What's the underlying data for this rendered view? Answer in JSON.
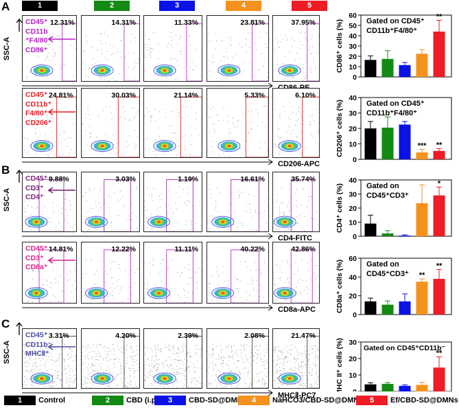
{
  "groups": [
    {
      "num": "1",
      "label": "Control",
      "color": "#000000"
    },
    {
      "num": "2",
      "label": "CBD (i.p.)",
      "color": "#138a13"
    },
    {
      "num": "3",
      "label": "CBD-SD@DMNs",
      "color": "#0a12e6"
    },
    {
      "num": "4",
      "label": "NaHCO3/CBD-SD@DMNs",
      "color": "#f5921e"
    },
    {
      "num": "5",
      "label": "Ef/CBD-SD@DMNs",
      "color": "#ee1c24"
    }
  ],
  "panels": {
    "A": "A",
    "B": "B",
    "C": "C"
  },
  "axis": {
    "ssc": "SSC-A"
  },
  "flow_rows": [
    {
      "id": "cd86",
      "marker_lines": [
        "CD45⁺",
        "CD11b",
        "⁺F4/80⁺",
        "CD86⁺"
      ],
      "marker_color": "#b521c8",
      "x_label": "CD86-PE",
      "gate_color": "#c040d0",
      "percents": [
        "12.31%",
        "14.31%",
        "11.33%",
        "23.81%",
        "37.95%"
      ]
    },
    {
      "id": "cd206",
      "marker_lines": [
        "CD45⁺",
        "CD11b⁺",
        "F4/80⁺",
        "CD206⁺"
      ],
      "marker_color": "#ee1c24",
      "x_label": "CD206-APC",
      "gate_color": "#e03030",
      "percents": [
        "24.81%",
        "30.03%",
        "21.14%",
        "5.33%",
        "6.10%"
      ]
    },
    {
      "id": "cd4",
      "marker_lines": [
        "CD45⁺",
        "CD3⁺",
        "CD4⁺"
      ],
      "marker_color": "#7a1f7a",
      "x_label": "CD4-FITC",
      "gate_color": "#a040a0",
      "percents": [
        "9.88%",
        "3.03%",
        "1.19%",
        "16.61%",
        "35.74%"
      ]
    },
    {
      "id": "cd8",
      "marker_lines": [
        "CD45⁺",
        "CD3⁺",
        "CD8a⁺"
      ],
      "marker_color": "#e0208a",
      "x_label": "CD8a-APC",
      "gate_color": "#c040c0",
      "percents": [
        "14.81%",
        "12.22%",
        "11.11%",
        "40.22%",
        "42.86%"
      ]
    },
    {
      "id": "mhc",
      "marker_lines": [
        "CD45⁺",
        "CD11b⁻",
        "MHCⅡ⁺"
      ],
      "marker_color": "#4a4aa0",
      "x_label": "MHCⅡ-PC7",
      "gate_color": "#555555",
      "percents": [
        "3.31%",
        "4.20%",
        "2.39%",
        "2.08%",
        "21.47%"
      ]
    }
  ],
  "chart_data": [
    {
      "type": "bar",
      "title": "Gated on CD45⁺ CD11b⁺F4/80⁺",
      "ylabel": "CD86⁺ cells (%)",
      "ylim": [
        0,
        60
      ],
      "yticks": [
        0,
        10,
        20,
        30,
        40,
        50,
        60
      ],
      "categories": [
        "1",
        "2",
        "3",
        "4",
        "5"
      ],
      "values": [
        16.5,
        17.5,
        11.5,
        22.5,
        44
      ],
      "errors": [
        4,
        8,
        2.5,
        4,
        11
      ],
      "significance": [
        "",
        "",
        "",
        "",
        "**"
      ]
    },
    {
      "type": "bar",
      "title": "Gated on CD45⁺ CD11b⁺F4/80⁺",
      "ylabel": "CD206⁺ cells (%)",
      "ylim": [
        0,
        40
      ],
      "yticks": [
        0,
        10,
        20,
        30,
        40
      ],
      "categories": [
        "1",
        "2",
        "3",
        "4",
        "5"
      ],
      "values": [
        20,
        20.5,
        22.5,
        4.5,
        5.5
      ],
      "errors": [
        4.5,
        7,
        2,
        2,
        1.5
      ],
      "significance": [
        "",
        "",
        "",
        "***",
        "**"
      ]
    },
    {
      "type": "bar",
      "title": "Gated on CD45⁺CD3⁺",
      "ylabel": "CD4⁺ cells (%)",
      "ylim": [
        0,
        40
      ],
      "yticks": [
        0,
        10,
        20,
        30,
        40
      ],
      "categories": [
        "1",
        "2",
        "3",
        "4",
        "5"
      ],
      "values": [
        9,
        2,
        0.5,
        23.5,
        29
      ],
      "errors": [
        6,
        2,
        0.5,
        13,
        6
      ],
      "significance": [
        "",
        "",
        "",
        "",
        "*"
      ]
    },
    {
      "type": "bar",
      "title": "Gated on CD45⁺CD3⁺",
      "ylabel": "CD8a⁺ cells (%)",
      "ylim": [
        0,
        60
      ],
      "yticks": [
        0,
        20,
        40,
        60
      ],
      "categories": [
        "1",
        "2",
        "3",
        "4",
        "5"
      ],
      "values": [
        14,
        10.5,
        14,
        35,
        38
      ],
      "errors": [
        3.5,
        4,
        8,
        3,
        10
      ],
      "significance": [
        "",
        "",
        "",
        "**",
        "**"
      ]
    },
    {
      "type": "bar",
      "title": "Gated on CD45⁺CD11b⁻",
      "ylabel": "MHC II⁺ cells (%)",
      "ylim": [
        0,
        30
      ],
      "yticks": [
        0,
        10,
        20,
        30
      ],
      "categories": [
        "1",
        "2",
        "3",
        "4",
        "5"
      ],
      "values": [
        4.3,
        4.6,
        3.4,
        4,
        14.5
      ],
      "errors": [
        1,
        0.8,
        0.6,
        1.5,
        6.5
      ],
      "significance": [
        "",
        "",
        "",
        "",
        "**"
      ]
    }
  ]
}
